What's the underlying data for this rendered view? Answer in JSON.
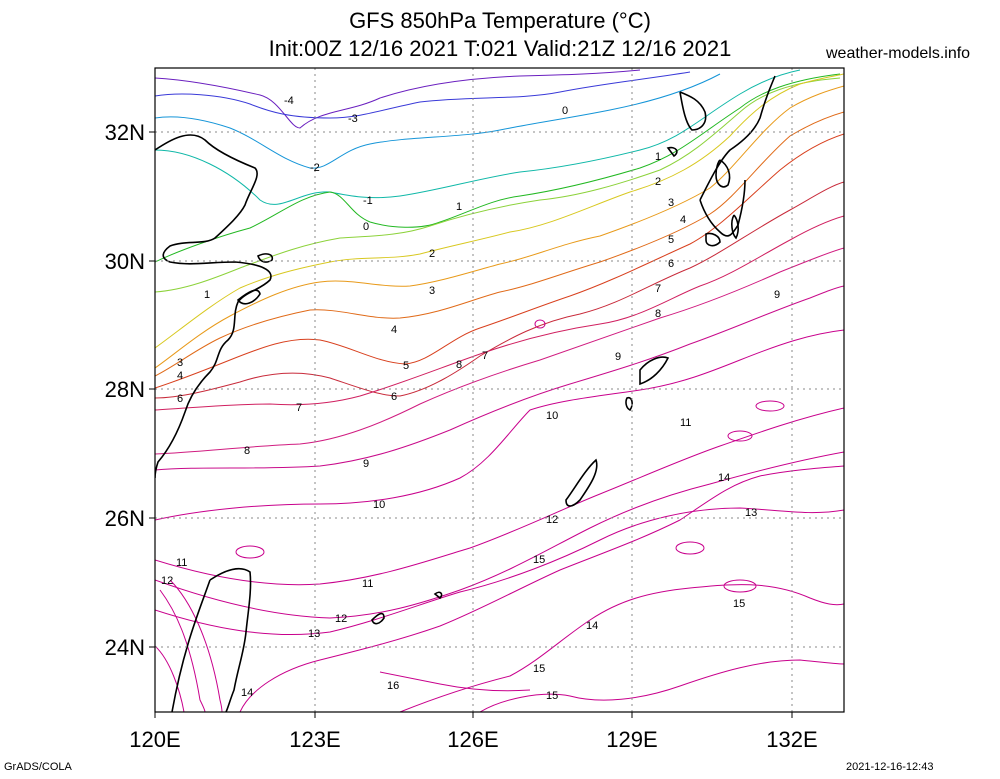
{
  "title_line1": "GFS 850hPa Temperature (°C)",
  "title_line2": "Init:00Z 12/16 2021 T:021 Valid:21Z 12/16 2021",
  "site": "weather-models.info",
  "footer_left": "GrADS/COLA",
  "footer_right": "2021-12-16-12:43",
  "axes": {
    "x_ticks": [
      "120E",
      "123E",
      "126E",
      "129E",
      "132E"
    ],
    "y_ticks": [
      "32N",
      "30N",
      "28N",
      "26N",
      "24N"
    ]
  },
  "contour_labels": [
    "-4",
    "-3",
    "-2",
    "-1",
    "0",
    "1",
    "2",
    "3",
    "4",
    "5",
    "6",
    "7",
    "8",
    "9",
    "10",
    "11",
    "12",
    "13",
    "14",
    "15",
    "16"
  ],
  "colors": {
    "coast": "#000000",
    "grid": "#888888",
    "t_-4": "#6a1fbf",
    "t_-3": "#3a3ad8",
    "t_-2": "#1595d8",
    "t_-1": "#10b8a8",
    "t_0": "#22b822",
    "t_1": "#8cd23a",
    "t_2": "#d8c820",
    "t_3": "#e89a1a",
    "t_4": "#e06a18",
    "t_5": "#d8401e",
    "t_6": "#c82a3a",
    "t_7": "#d02060",
    "t_8": "#d01c80",
    "t_9": "#c80a8a",
    "t_warm": "#c8008c"
  }
}
